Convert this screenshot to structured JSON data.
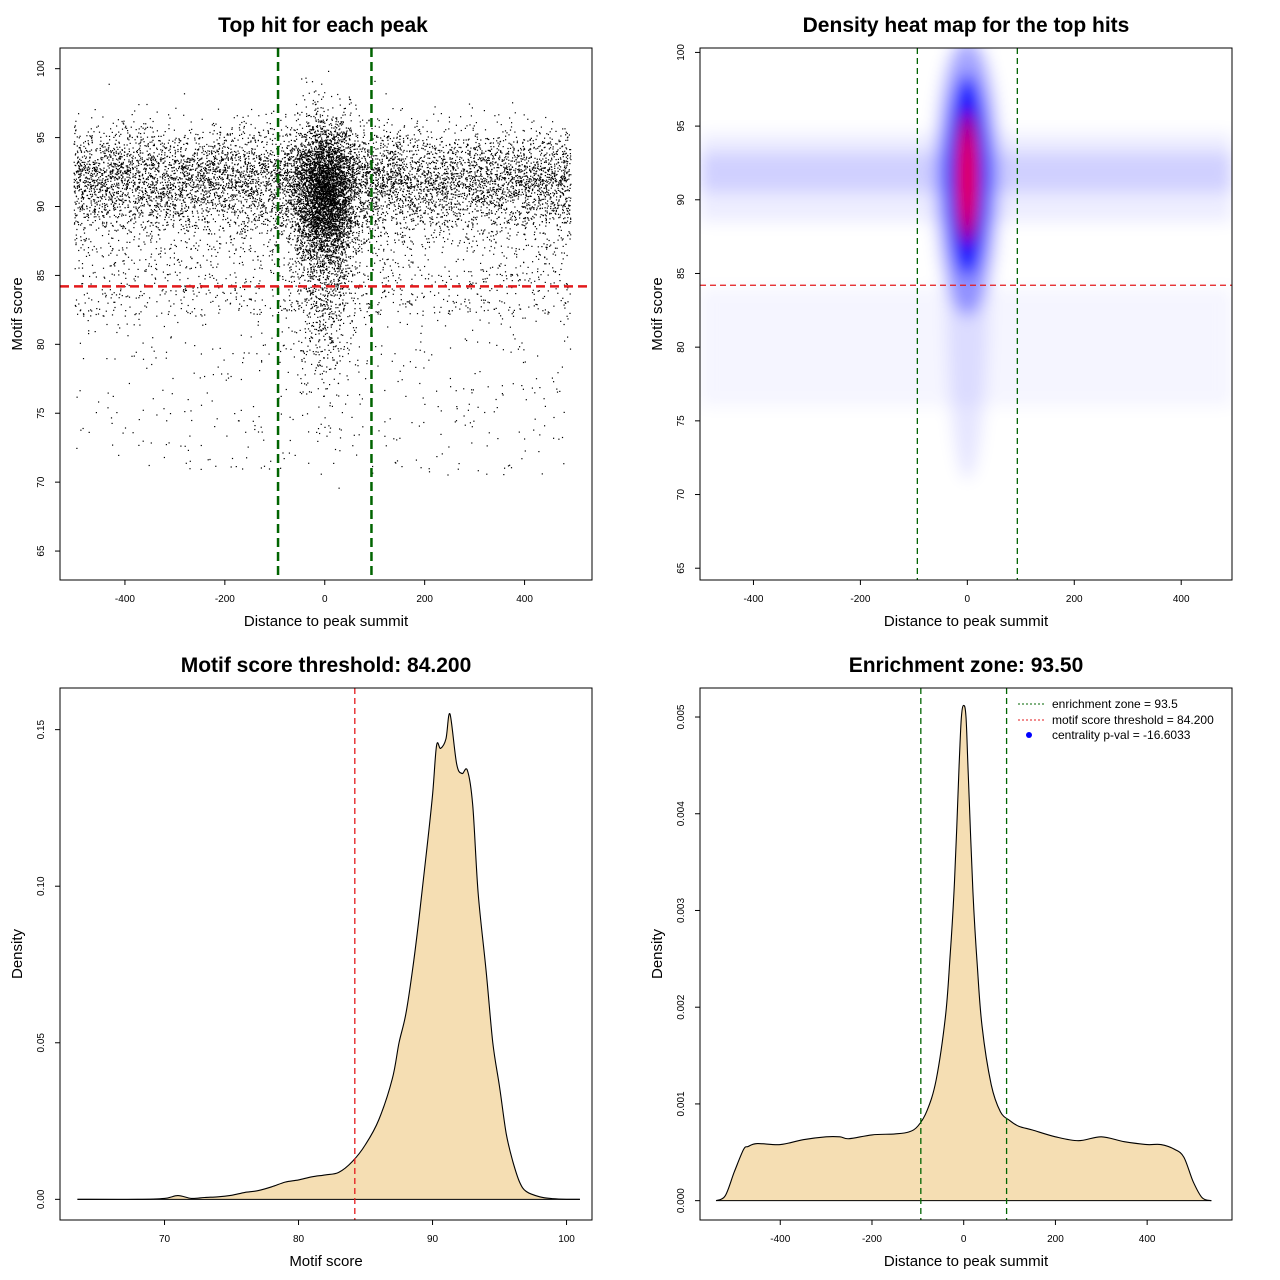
{
  "chart_data": [
    {
      "type": "scatter",
      "title": "Top hit for each peak",
      "xlabel": "Distance to peak summit",
      "ylabel": "Motif score",
      "xlim": [
        -530,
        535
      ],
      "ylim": [
        62.9,
        101.5
      ],
      "xticks": [
        -400,
        -200,
        0,
        200,
        400
      ],
      "xtick_labels": [
        "-400",
        "-200",
        "0",
        "200",
        "400"
      ],
      "yticks": [
        65,
        70,
        75,
        80,
        85,
        90,
        95,
        100
      ],
      "ytick_labels": [
        "65",
        "70",
        "75",
        "80",
        "85",
        "90",
        "95",
        "100"
      ],
      "vlines": [
        -93.5,
        93.5
      ],
      "hline": 84.2,
      "vline_color": "#006400",
      "hline_color": "#e31a1c",
      "point_color": "#000000",
      "n_points": 14000
    },
    {
      "type": "heatmap",
      "title": "Density heat map for the top hits",
      "xlabel": "Distance to peak summit",
      "ylabel": "Motif score",
      "xlim": [
        -500,
        495
      ],
      "ylim": [
        64.2,
        100.3
      ],
      "xticks": [
        -400,
        -200,
        0,
        200,
        400
      ],
      "xtick_labels": [
        "-400",
        "-200",
        "0",
        "200",
        "400"
      ],
      "yticks": [
        65,
        70,
        75,
        80,
        85,
        90,
        95,
        100
      ],
      "ytick_labels": [
        "65",
        "70",
        "75",
        "80",
        "85",
        "90",
        "95",
        "100"
      ],
      "vlines": [
        -93.5,
        93.5
      ],
      "hline": 84.2,
      "colors": [
        "#ffffff",
        "#0000ff",
        "#ff0000"
      ],
      "vline_color": "#006400",
      "hline_color": "#e31a1c"
    },
    {
      "type": "area",
      "title": "Motif score threshold: 84.200",
      "xlabel": "Motif score",
      "ylabel": "Density",
      "xlim": [
        62.2,
        101.9
      ],
      "ylim": [
        -0.0066,
        0.1633
      ],
      "xticks": [
        70,
        80,
        90,
        100
      ],
      "xtick_labels": [
        "70",
        "80",
        "90",
        "100"
      ],
      "yticks": [
        0,
        0.05,
        0.1,
        0.15
      ],
      "ytick_labels": [
        "0.00",
        "0.05",
        "0.10",
        "0.15"
      ],
      "vline": 84.2,
      "fill_color": "#f5deb3",
      "vline_color": "#e31a1c",
      "x": [
        63.5,
        68,
        70,
        71,
        72,
        73,
        74,
        75,
        76,
        77,
        78,
        79,
        80,
        81,
        82,
        83,
        84,
        85,
        86,
        87,
        87.5,
        88,
        88.5,
        89,
        89.5,
        90,
        90.3,
        90.6,
        91,
        91.3,
        91.8,
        92.2,
        92.6,
        93,
        93.4,
        94,
        94.5,
        95,
        95.5,
        96,
        96.5,
        97,
        98,
        99,
        100,
        101
      ],
      "y": [
        0,
        0,
        0.0003,
        0.0012,
        0.0003,
        0.0006,
        0.0008,
        0.0013,
        0.0022,
        0.0028,
        0.004,
        0.0055,
        0.0062,
        0.0072,
        0.0078,
        0.0086,
        0.012,
        0.0175,
        0.0255,
        0.0385,
        0.05,
        0.059,
        0.073,
        0.09,
        0.109,
        0.129,
        0.145,
        0.144,
        0.147,
        0.155,
        0.139,
        0.136,
        0.137,
        0.126,
        0.098,
        0.073,
        0.05,
        0.036,
        0.021,
        0.012,
        0.0055,
        0.0025,
        0.0008,
        0.0002,
        0,
        0
      ]
    },
    {
      "type": "area",
      "title": "Enrichment zone: 93.50",
      "xlabel": "Distance to peak summit",
      "ylabel": "Density",
      "xlim": [
        -575,
        585
      ],
      "ylim": [
        -0.0002,
        0.0053
      ],
      "xticks": [
        -400,
        -200,
        0,
        200,
        400
      ],
      "xtick_labels": [
        "-400",
        "-200",
        "0",
        "200",
        "400"
      ],
      "yticks": [
        0,
        0.001,
        0.002,
        0.003,
        0.004,
        0.005
      ],
      "ytick_labels": [
        "0.000",
        "0.001",
        "0.002",
        "0.003",
        "0.004",
        "0.005"
      ],
      "vlines": [
        -93.5,
        93.5
      ],
      "fill_color": "#f5deb3",
      "vline_color": "#006400",
      "x": [
        -540,
        -520,
        -500,
        -480,
        -470,
        -450,
        -400,
        -350,
        -300,
        -270,
        -250,
        -200,
        -150,
        -120,
        -100,
        -80,
        -60,
        -40,
        -30,
        -20,
        -10,
        -5,
        0,
        5,
        10,
        20,
        30,
        40,
        60,
        80,
        100,
        120,
        150,
        200,
        250,
        300,
        350,
        400,
        430,
        460,
        480,
        500,
        520,
        540
      ],
      "y": [
        0,
        5e-05,
        0.0003,
        0.00053,
        0.00056,
        0.00059,
        0.00058,
        0.00063,
        0.00066,
        0.00066,
        0.00064,
        0.00068,
        0.00069,
        0.00071,
        0.00077,
        0.00093,
        0.00125,
        0.0019,
        0.0025,
        0.0033,
        0.0045,
        0.005,
        0.00512,
        0.005,
        0.0044,
        0.0032,
        0.0024,
        0.0018,
        0.0012,
        0.00092,
        0.00083,
        0.00077,
        0.00073,
        0.00066,
        0.00062,
        0.00066,
        0.00061,
        0.00058,
        0.00058,
        0.00053,
        0.00045,
        0.0002,
        3e-05,
        0
      ],
      "legend": [
        {
          "label": "enrichment zone = 93.5",
          "style": "dotted-line",
          "color": "#006400"
        },
        {
          "label": "motif score threshold = 84.200",
          "style": "dotted-line",
          "color": "#e31a1c"
        },
        {
          "label": "centrality p-val = -16.6033",
          "style": "point",
          "color": "#0000ff"
        }
      ]
    }
  ]
}
